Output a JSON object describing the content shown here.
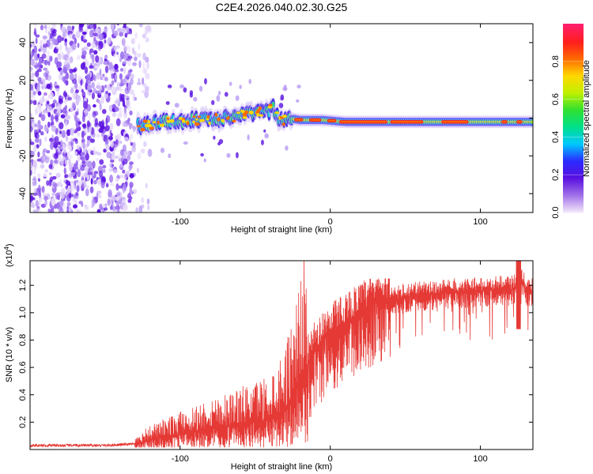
{
  "figure_title": "C2E4.2026.040.02.30.G25",
  "colors": {
    "snr_line": "#e53935",
    "colormap": [
      "#f2e6fb",
      "#a070e8",
      "#5a10e0",
      "#2b2bff",
      "#00c8ff",
      "#00e08a",
      "#30e030",
      "#c0f000",
      "#ffd800",
      "#ff6a00",
      "#ff1e1e",
      "#ff1f6a"
    ]
  },
  "chart_data": [
    {
      "type": "heatmap",
      "title": "C2E4.2026.040.02.30.G25",
      "xlabel": "Height of straight line (km)",
      "ylabel": "Frequency (Hz)",
      "xlim": [
        -200,
        135
      ],
      "ylim": [
        -50,
        50
      ],
      "xticks": [
        {
          "value": -100,
          "label": "-100"
        },
        {
          "value": 0,
          "label": "0"
        },
        {
          "value": 100,
          "label": "100"
        }
      ],
      "yticks": [
        {
          "value": -40,
          "label": "-40"
        },
        {
          "value": -20,
          "label": "-20"
        },
        {
          "value": 0,
          "label": "0"
        },
        {
          "value": 20,
          "label": "20"
        },
        {
          "value": 40,
          "label": "40"
        }
      ],
      "colorbar": {
        "label": "Normalized spectral amplitude",
        "range": [
          0,
          1
        ],
        "ticks": [
          {
            "value": 0.0,
            "label": "0.0"
          },
          {
            "value": 0.2,
            "label": "0.2"
          },
          {
            "value": 0.4,
            "label": "0.4"
          },
          {
            "value": 0.6,
            "label": "0.6"
          },
          {
            "value": 0.8,
            "label": "0.8"
          }
        ]
      },
      "noise_region": {
        "x_start": -200,
        "x_end": -120,
        "frequency_span": [
          -50,
          50
        ],
        "dense_end": -132
      },
      "tone_track": [
        {
          "x": -128,
          "f": -4
        },
        {
          "x": -110,
          "f": -2
        },
        {
          "x": -90,
          "f": -1
        },
        {
          "x": -70,
          "f": 0
        },
        {
          "x": -55,
          "f": 2
        },
        {
          "x": -45,
          "f": 3
        },
        {
          "x": -38,
          "f": 5
        },
        {
          "x": -33,
          "f": -2
        },
        {
          "x": -28,
          "f": 0
        },
        {
          "x": -20,
          "f": -1
        },
        {
          "x": -5,
          "f": -1
        },
        {
          "x": 10,
          "f": -2
        },
        {
          "x": 40,
          "f": -2
        },
        {
          "x": 70,
          "f": -2
        },
        {
          "x": 100,
          "f": -2
        },
        {
          "x": 120,
          "f": -2
        },
        {
          "x": 135,
          "f": -2
        }
      ]
    },
    {
      "type": "line",
      "xlabel": "Height of straight line (km)",
      "ylabel": "SNR (10 * v/v)",
      "y_multiplier_label": "(x10",
      "y_multiplier_exponent": "4",
      "xlim": [
        -200,
        135
      ],
      "ylim": [
        0,
        1.38
      ],
      "xticks": [
        {
          "value": -100,
          "label": "-100"
        },
        {
          "value": 0,
          "label": "0"
        },
        {
          "value": 100,
          "label": "100"
        }
      ],
      "yticks": [
        {
          "value": 0.2,
          "label": "0.2"
        },
        {
          "value": 0.4,
          "label": "0.4"
        },
        {
          "value": 0.6,
          "label": "0.6"
        },
        {
          "value": 0.8,
          "label": "0.8"
        },
        {
          "value": 1.0,
          "label": "1.0"
        },
        {
          "value": 1.2,
          "label": "1.2"
        }
      ],
      "series": [
        {
          "name": "SNR",
          "envelope": {
            "x": [
              -200,
              -150,
              -130,
              -120,
              -100,
              -80,
              -60,
              -40,
              -30,
              -25,
              -20,
              -15,
              -10,
              -5,
              0,
              10,
              20,
              30,
              40,
              60,
              80,
              100,
              110,
              120,
              128,
              130,
              135
            ],
            "y": [
              0.03,
              0.03,
              0.04,
              0.07,
              0.11,
              0.15,
              0.18,
              0.22,
              0.3,
              0.4,
              0.5,
              0.62,
              0.72,
              0.8,
              0.86,
              0.93,
              1.0,
              1.07,
              1.1,
              1.13,
              1.15,
              1.16,
              1.17,
              1.17,
              1.22,
              1.17,
              1.15
            ]
          }
        }
      ]
    }
  ]
}
